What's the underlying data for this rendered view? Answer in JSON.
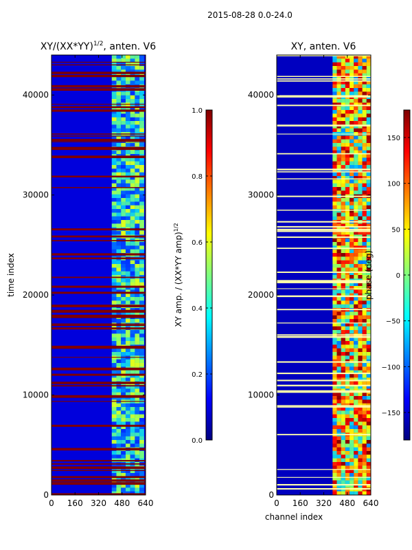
{
  "figure": {
    "suptitle": "2015-08-28 0.0-24.0"
  },
  "chart_data": [
    {
      "type": "heatmap",
      "title": "XY/(XX*YY)^1/2, anten. V6",
      "title_base": "XY/(XX*YY)",
      "title_sup": "1/2",
      "title_tail": ", anten. V6",
      "xlabel": "",
      "ylabel": "time index",
      "xlim": [
        0,
        640
      ],
      "ylim": [
        0,
        44000
      ],
      "xticks": [
        0,
        160,
        320,
        480,
        640
      ],
      "yticks": [
        0,
        10000,
        20000,
        30000,
        40000
      ],
      "xtick_labels": [
        "0",
        "160",
        "320",
        "480",
        "640"
      ],
      "ytick_labels": [
        "0",
        "10000",
        "20000",
        "30000",
        "40000"
      ],
      "colormap": "jet",
      "colorbar": {
        "label": "XY amp. / (XX*YY amp)^1/2",
        "label_base": "XY amp. / (XX*YY amp)",
        "label_sup": "1/2",
        "range": [
          0.0,
          1.0
        ],
        "ticks": [
          0.0,
          0.2,
          0.4,
          0.6,
          0.8,
          1.0
        ],
        "tick_labels": [
          "0.0",
          "0.2",
          "0.4",
          "0.6",
          "0.8",
          "1.0"
        ]
      },
      "description_values": {
        "background_level": 0.08,
        "active_band_channels": [
          410,
          630
        ],
        "active_band_level_range": [
          0.25,
          0.55
        ],
        "flagged_row_level": 1.0
      }
    },
    {
      "type": "heatmap",
      "title": "XY, anten. V6",
      "xlabel": "channel index",
      "ylabel": "",
      "xlim": [
        0,
        640
      ],
      "ylim": [
        0,
        44000
      ],
      "xticks": [
        0,
        160,
        320,
        480,
        640
      ],
      "yticks": [
        0,
        10000,
        20000,
        30000,
        40000
      ],
      "xtick_labels": [
        "0",
        "160",
        "320",
        "480",
        "640"
      ],
      "ytick_labels": [
        "0",
        "10000",
        "20000",
        "30000",
        "40000"
      ],
      "colormap": "jet",
      "colorbar": {
        "label": "phase (deg)",
        "range": [
          -180,
          180
        ],
        "ticks": [
          -150,
          -100,
          -50,
          0,
          50,
          100,
          150
        ],
        "tick_labels": [
          "−150",
          "−100",
          "−50",
          "0",
          "50",
          "100",
          "150"
        ]
      },
      "description_values": {
        "background_phase_deg": -160,
        "high_phase_region_channels": [
          380,
          640
        ],
        "high_phase_level_deg": 140
      }
    }
  ],
  "colors": {
    "jet": [
      "#00007f",
      "#0000ff",
      "#007fff",
      "#00ffff",
      "#7fff7f",
      "#ffff00",
      "#ff7f00",
      "#ff0000",
      "#7f0000"
    ],
    "flag_row_amp": "#7f0000",
    "flag_row_phase": "#ffffaa",
    "axis": "#000000"
  }
}
